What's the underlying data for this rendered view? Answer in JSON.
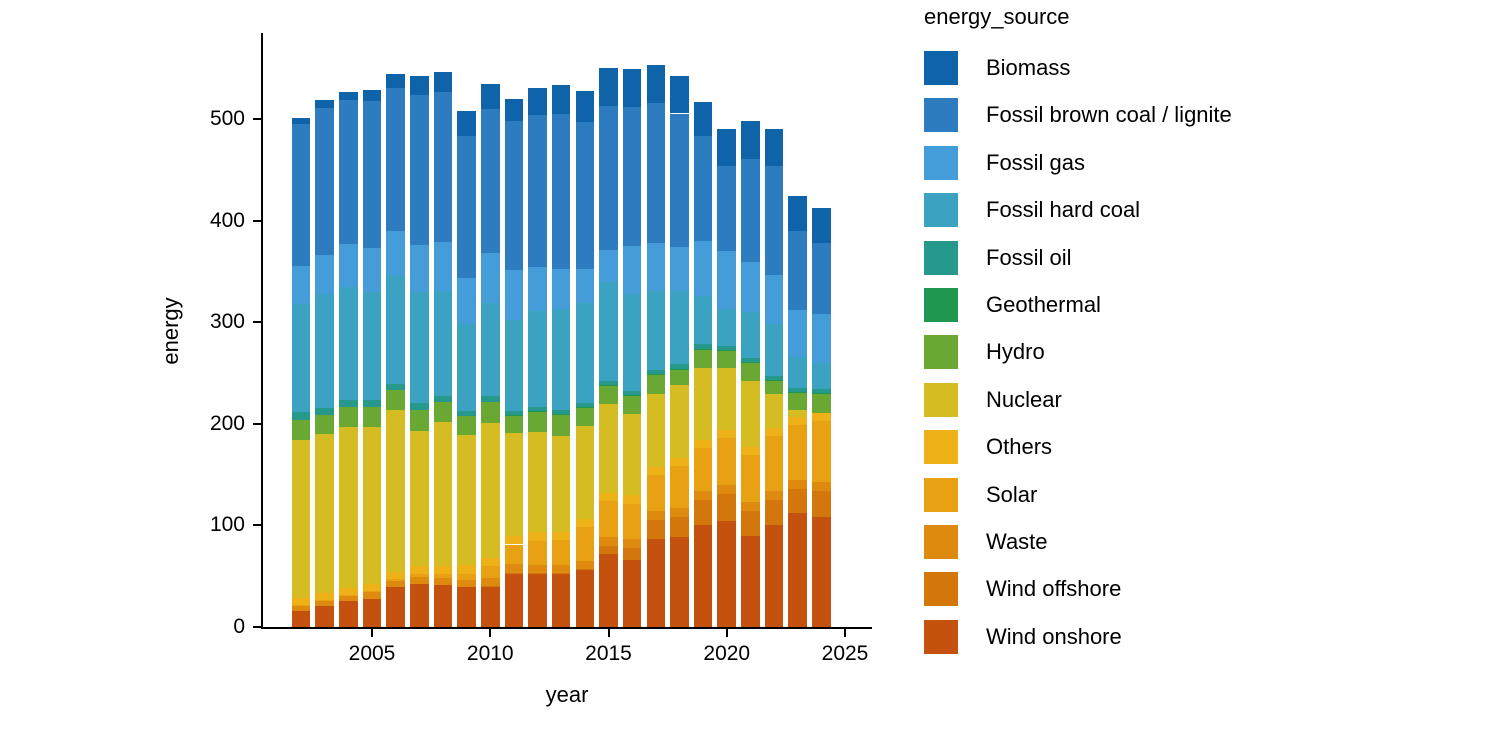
{
  "chart_data": {
    "type": "bar",
    "stacked": true,
    "title": "",
    "xlabel": "year",
    "ylabel": "energy",
    "legend_title": "energy_source",
    "legend_position": "right",
    "grid": false,
    "background": "#ffffff",
    "axis_color": "#000000",
    "xlim": [
      2000.4,
      2026.2
    ],
    "ylim": [
      0,
      580
    ],
    "yticks": [
      0,
      100,
      200,
      300,
      400,
      500
    ],
    "xticks": [
      2005,
      2010,
      2015,
      2020,
      2025
    ],
    "x": [
      2002,
      2003,
      2004,
      2005,
      2006,
      2007,
      2008,
      2009,
      2010,
      2011,
      2012,
      2013,
      2014,
      2015,
      2016,
      2017,
      2018,
      2019,
      2020,
      2021,
      2022,
      2023,
      2024
    ],
    "stack_note": "bottom-to-top stacking is reverse of series order (Wind onshore at bottom, Biomass on top)",
    "series": [
      {
        "name": "Biomass",
        "color": "#0e63a9",
        "values": [
          6,
          7,
          8,
          11,
          14,
          18,
          20,
          24,
          25,
          21,
          26,
          28,
          30,
          37,
          38,
          37,
          37,
          34,
          36,
          38,
          37,
          34,
          34
        ]
      },
      {
        "name": "Fossil brown coal / lignite",
        "color": "#2d7cbf",
        "values": [
          140,
          145,
          142,
          144,
          140,
          148,
          147,
          140,
          142,
          147,
          150,
          153,
          145,
          142,
          137,
          138,
          131,
          103,
          84,
          101,
          107,
          78,
          70
        ]
      },
      {
        "name": "Fossil gas",
        "color": "#449cd8",
        "values": [
          37,
          39,
          42,
          44,
          44,
          46,
          49,
          45,
          49,
          49,
          43,
          39,
          33,
          32,
          47,
          47,
          44,
          54,
          57,
          49,
          48,
          46,
          48
        ]
      },
      {
        "name": "Fossil hard coal",
        "color": "#3ba2c2",
        "values": [
          107,
          112,
          111,
          106,
          107,
          110,
          103,
          86,
          92,
          90,
          95,
          100,
          99,
          97,
          95,
          78,
          72,
          48,
          36,
          45,
          51,
          31,
          26
        ]
      },
      {
        "name": "Fossil oil",
        "color": "#27988c",
        "values": [
          7,
          7,
          7,
          7,
          6,
          6,
          6,
          5,
          5,
          4,
          4,
          4,
          4,
          4,
          4,
          4,
          4,
          4,
          4,
          4,
          4,
          4,
          4
        ]
      },
      {
        "name": "Geothermal",
        "color": "#209751",
        "values": [
          0,
          0,
          0,
          0,
          0,
          0,
          0,
          0,
          0,
          0.1,
          0.1,
          0.1,
          0.1,
          0.2,
          0.2,
          0.2,
          0.2,
          0.2,
          0.2,
          0.2,
          0.2,
          0.2,
          0.2
        ]
      },
      {
        "name": "Hydro",
        "color": "#69a933",
        "values": [
          20,
          18,
          20,
          19,
          20,
          21,
          20,
          19,
          21,
          17,
          20,
          21,
          18,
          19,
          19,
          19,
          16,
          19,
          18,
          19,
          14,
          17,
          19
        ]
      },
      {
        "name": "Nuclear",
        "color": "#d5bc22",
        "values": [
          156,
          157,
          158,
          155,
          159,
          133,
          141,
          128,
          133,
          102,
          99,
          95,
          92,
          87,
          80,
          72,
          72,
          71,
          61,
          65,
          33,
          7,
          0
        ]
      },
      {
        "name": "Others",
        "color": "#efb118",
        "values": [
          7,
          7,
          7,
          7,
          7,
          8,
          8,
          8,
          8,
          8,
          8,
          8,
          8,
          8,
          8,
          8,
          8,
          8,
          8,
          8,
          8,
          8,
          8
        ]
      },
      {
        "name": "Solar",
        "color": "#e8a112",
        "values": [
          0.2,
          0.3,
          0.5,
          1.3,
          2.2,
          3,
          4.4,
          6.6,
          11.7,
          19.6,
          24.4,
          24.3,
          32.8,
          35,
          34.5,
          35.5,
          41.2,
          41.9,
          45.8,
          46,
          54.3,
          54,
          60
        ]
      },
      {
        "name": "Waste",
        "color": "#de8a0f",
        "values": [
          5,
          5,
          5,
          6,
          6,
          7,
          7,
          7,
          8,
          8,
          8,
          8,
          8,
          9,
          9,
          9,
          9,
          9,
          9,
          9,
          9,
          9,
          9
        ]
      },
      {
        "name": "Wind offshore",
        "color": "#d3770d",
        "values": [
          0,
          0,
          0,
          0,
          0,
          0,
          0,
          0,
          0.2,
          0.6,
          0.7,
          0.9,
          1.4,
          8,
          12,
          18,
          19,
          25,
          27,
          24,
          25,
          24,
          26
        ]
      },
      {
        "name": "Wind onshore",
        "color": "#c4510e",
        "values": [
          16,
          21,
          26,
          28,
          39,
          42,
          41,
          39,
          40,
          53,
          52,
          52,
          56,
          72,
          66,
          87,
          89,
          100,
          104,
          90,
          100,
          112,
          108
        ]
      }
    ]
  }
}
